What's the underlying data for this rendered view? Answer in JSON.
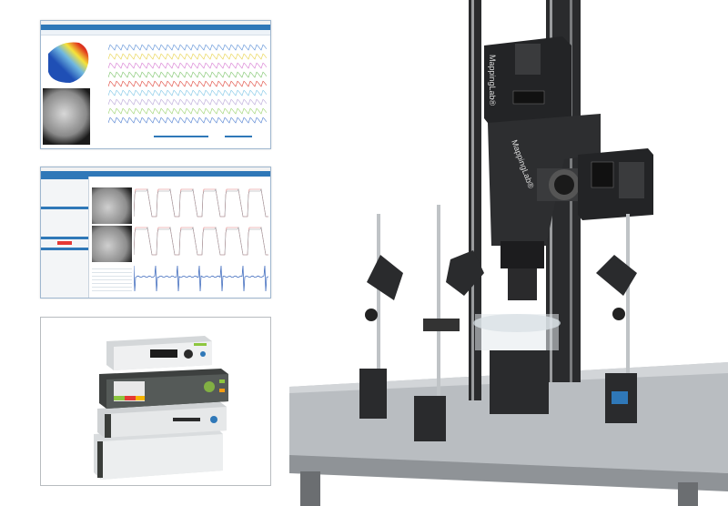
{
  "brand": {
    "logo_text": "MappingLab®"
  },
  "colors": {
    "app_accent": "#2f78b8",
    "rig_black": "#2a2b2d",
    "table_gray": "#a9adb1",
    "device_green": "#8dc63f"
  },
  "panels": {
    "software_screenshot_1": {
      "content": "heat-map and multi-trace optical mapping view"
    },
    "software_screenshot_2": {
      "content": "camera images with action potential traces"
    },
    "hardware_photo": {
      "content": "stacked control units"
    }
  }
}
